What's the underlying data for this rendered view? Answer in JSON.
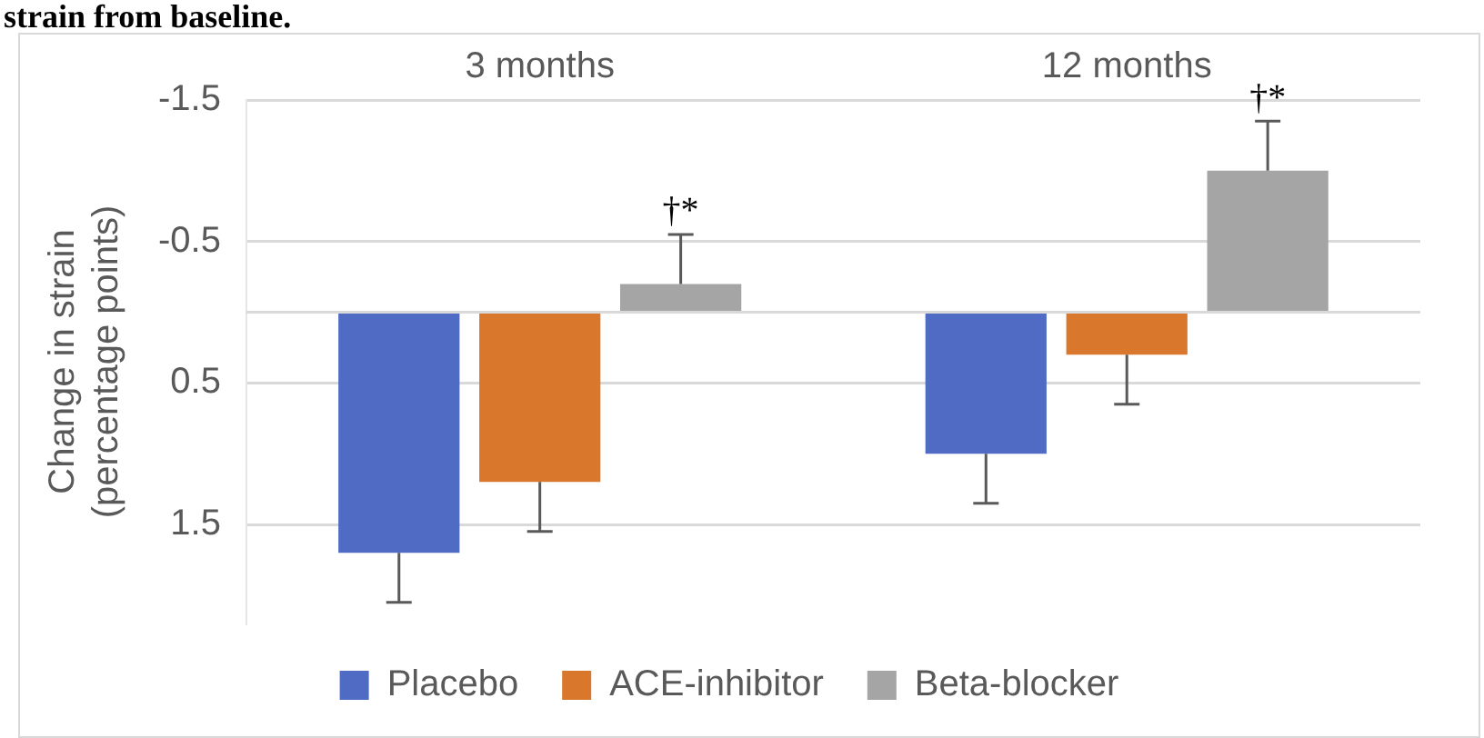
{
  "chart_data": {
    "type": "bar",
    "title": "strain from baseline.",
    "ylabel": "Change in strain\n(percentage points)",
    "categories": [
      "3 months",
      "12 months"
    ],
    "series": [
      {
        "name": "Placebo",
        "color": "#4f6bc4",
        "values": [
          1.7,
          1.0
        ],
        "errors": [
          [
            1.7,
            2.05
          ],
          [
            1.0,
            1.35
          ]
        ]
      },
      {
        "name": "ACE-inhibitor",
        "color": "#d9782d",
        "values": [
          1.2,
          0.3
        ],
        "errors": [
          [
            1.2,
            1.55
          ],
          [
            0.3,
            0.65
          ]
        ]
      },
      {
        "name": "Beta-blocker",
        "color": "#a5a5a5",
        "values": [
          -0.2,
          -1.0
        ],
        "errors": [
          [
            -0.55,
            -0.2
          ],
          [
            -1.35,
            -1.0
          ]
        ]
      }
    ],
    "annotations": [
      "†*",
      "†*"
    ],
    "ylim": [
      2.2,
      -1.5
    ],
    "yticks": [
      -1.5,
      -0.5,
      0.5,
      1.5
    ],
    "grid": "y",
    "legend": "bottom"
  }
}
